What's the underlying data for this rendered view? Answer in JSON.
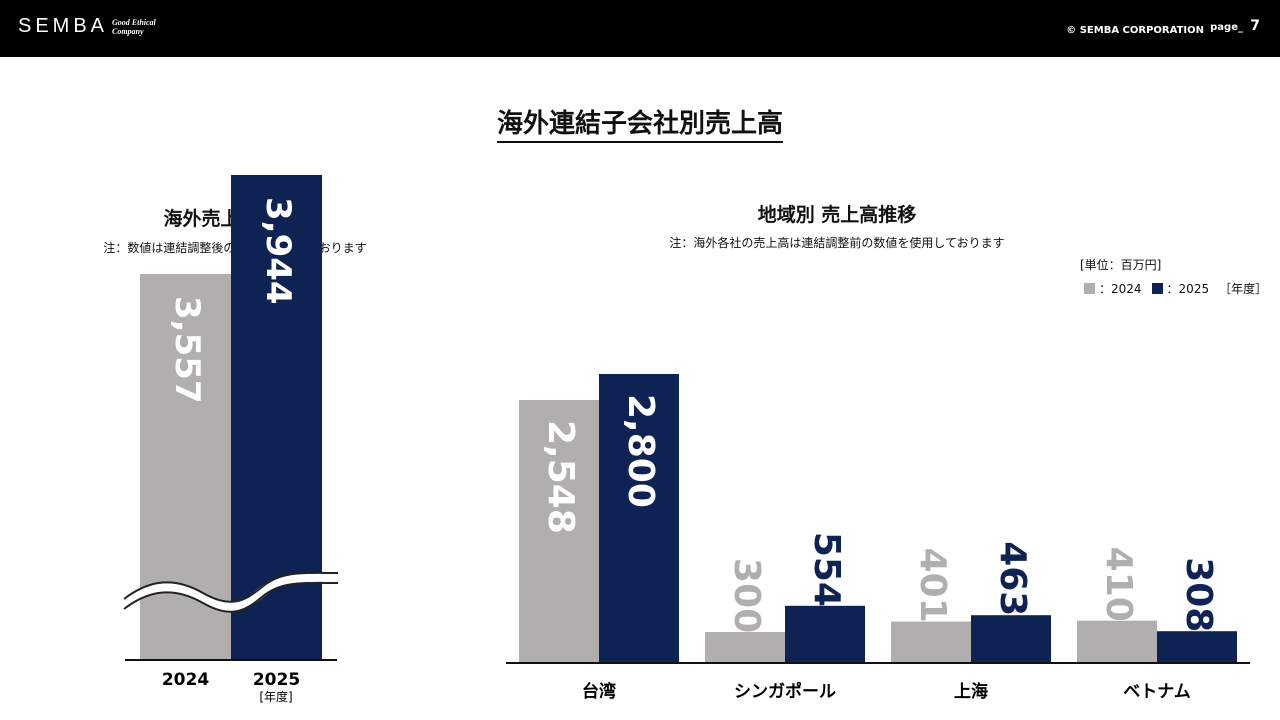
{
  "header": {
    "logo": "SEMBA",
    "tagline": "Good Ethical Company",
    "copyright": "© SEMBA CORPORATION",
    "page_label": "page_",
    "page_number": "7"
  },
  "title": "海外連結子会社別売上高",
  "colors": {
    "y2024": "#b1aeae",
    "y2025": "#0e2253",
    "header_bg": "#000000"
  },
  "left_panel": {
    "title": "海外売上高推移",
    "note": "注：数値は連結調整後の数値を使用しております"
  },
  "right_panel": {
    "title": "地域別 売上高推移",
    "note": "注：海外各社の売上高は連結調整前の数値を使用しております",
    "unit": "[単位：百万円]",
    "legend": {
      "label_2024": "：2024",
      "label_2025": "：2025",
      "year_suffix": "［年度］"
    }
  },
  "chart_data": [
    {
      "type": "bar",
      "title": "海外売上高推移",
      "categories": [
        "2024",
        "2025"
      ],
      "values": [
        3557,
        3944
      ],
      "value_labels": [
        "3,557",
        "3,944"
      ],
      "x_suffix": "[年度]",
      "axis_break": true
    },
    {
      "type": "bar",
      "title": "地域別 売上高推移",
      "categories": [
        "台湾",
        "シンガポール",
        "上海",
        "ベトナム"
      ],
      "series": [
        {
          "name": "2024",
          "values": [
            2548,
            300,
            401,
            410
          ],
          "labels": [
            "2,548",
            "300",
            "401",
            "410"
          ]
        },
        {
          "name": "2025",
          "values": [
            2800,
            554,
            463,
            308
          ],
          "labels": [
            "2,800",
            "554",
            "463",
            "308"
          ]
        }
      ],
      "unit": "百万円"
    }
  ]
}
